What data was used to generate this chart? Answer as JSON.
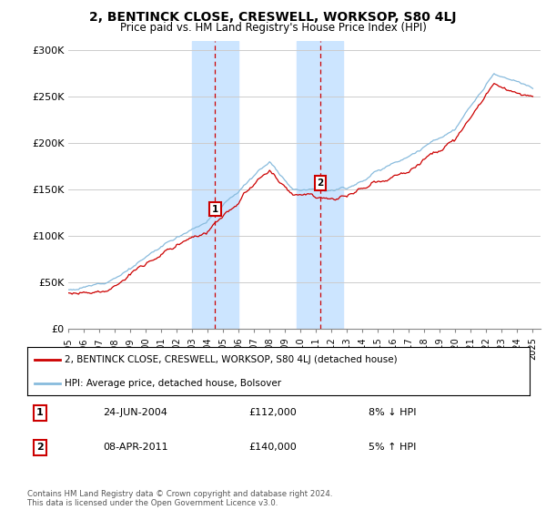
{
  "title": "2, BENTINCK CLOSE, CRESWELL, WORKSOP, S80 4LJ",
  "subtitle": "Price paid vs. HM Land Registry's House Price Index (HPI)",
  "ylabel_ticks": [
    "£0",
    "£50K",
    "£100K",
    "£150K",
    "£200K",
    "£250K",
    "£300K"
  ],
  "ytick_vals": [
    0,
    50000,
    100000,
    150000,
    200000,
    250000,
    300000
  ],
  "ylim": [
    0,
    310000
  ],
  "xlim_start": 1995.0,
  "xlim_end": 2025.5,
  "sale1_date": 2004.48,
  "sale1_price": 112000,
  "sale1_label": "1",
  "sale1_date_str": "24-JUN-2004",
  "sale1_price_str": "£112,000",
  "sale1_hpi_str": "8% ↓ HPI",
  "sale2_date": 2011.27,
  "sale2_price": 140000,
  "sale2_label": "2",
  "sale2_date_str": "08-APR-2011",
  "sale2_price_str": "£140,000",
  "sale2_hpi_str": "5% ↑ HPI",
  "red_line_label": "2, BENTINCK CLOSE, CRESWELL, WORKSOP, S80 4LJ (detached house)",
  "blue_line_label": "HPI: Average price, detached house, Bolsover",
  "copyright": "Contains HM Land Registry data © Crown copyright and database right 2024.\nThis data is licensed under the Open Government Licence v3.0.",
  "shade_color": "#cce5ff",
  "red_color": "#cc0000",
  "blue_color": "#88bbdd",
  "background_color": "#ffffff",
  "grid_color": "#cccccc"
}
